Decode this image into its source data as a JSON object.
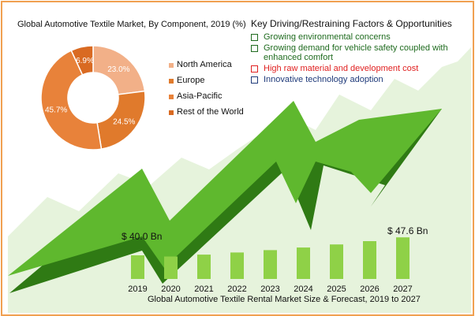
{
  "colors": {
    "border": "#f0a050",
    "bar": "#8fd147",
    "arrow": "#5fb82e",
    "arrow_dark": "#2f7a14",
    "background_chart": "#e6f3dc",
    "green_text": "#1f6b1f",
    "red_text": "#e02020",
    "navy_text": "#1f3a7a"
  },
  "pie": {
    "title": "Global Automotive Textile Market, By Component, 2019 (%)"
  },
  "factors": {
    "title": "Key Driving/Restraining Factors & Opportunities",
    "items": [
      {
        "text": "Growing environmental concerns",
        "color": "#1f6b1f"
      },
      {
        "text": "Growing demand for vehicle safety coupled with enhanced comfort",
        "color": "#1f6b1f"
      },
      {
        "text": "High raw material and development cost",
        "color": "#e02020"
      },
      {
        "text": "Innovative technology adoption",
        "color": "#1f3a7a"
      }
    ]
  },
  "bars": {
    "title": "Global Automotive Textile Rental Market Size & Forecast, 2019 to 2027",
    "first_value_label": "$ 40.0 Bn",
    "last_value_label": "$ 47.6 Bn"
  },
  "chart_data": [
    {
      "type": "pie",
      "title": "Global Automotive Textile Market, By Component, 2019 (%)",
      "labels": [
        "North America",
        "Europe",
        "Asia-Pacific",
        "Rest of the World"
      ],
      "values": [
        23.0,
        24.5,
        45.7,
        6.9
      ],
      "value_labels": [
        "23.0%",
        "24.5%",
        "45.7%",
        "6.9%"
      ],
      "colors": [
        "#f2b088",
        "#e07a2c",
        "#e8823a",
        "#d96a22"
      ],
      "donut": true,
      "legend": "right"
    },
    {
      "type": "bar",
      "title": "Global Automotive Textile Rental Market Size & Forecast, 2019 to 2027",
      "categories": [
        "2019",
        "2020",
        "2021",
        "2022",
        "2023",
        "2024",
        "2025",
        "2026",
        "2027"
      ],
      "values": [
        40.0,
        39.5,
        40.3,
        41.2,
        42.2,
        43.3,
        44.6,
        46.0,
        47.6
      ],
      "data_labels": {
        "2019": "$ 40.0 Bn",
        "2027": "$ 47.6 Bn"
      },
      "color": "#8fd147",
      "grid": false
    }
  ]
}
